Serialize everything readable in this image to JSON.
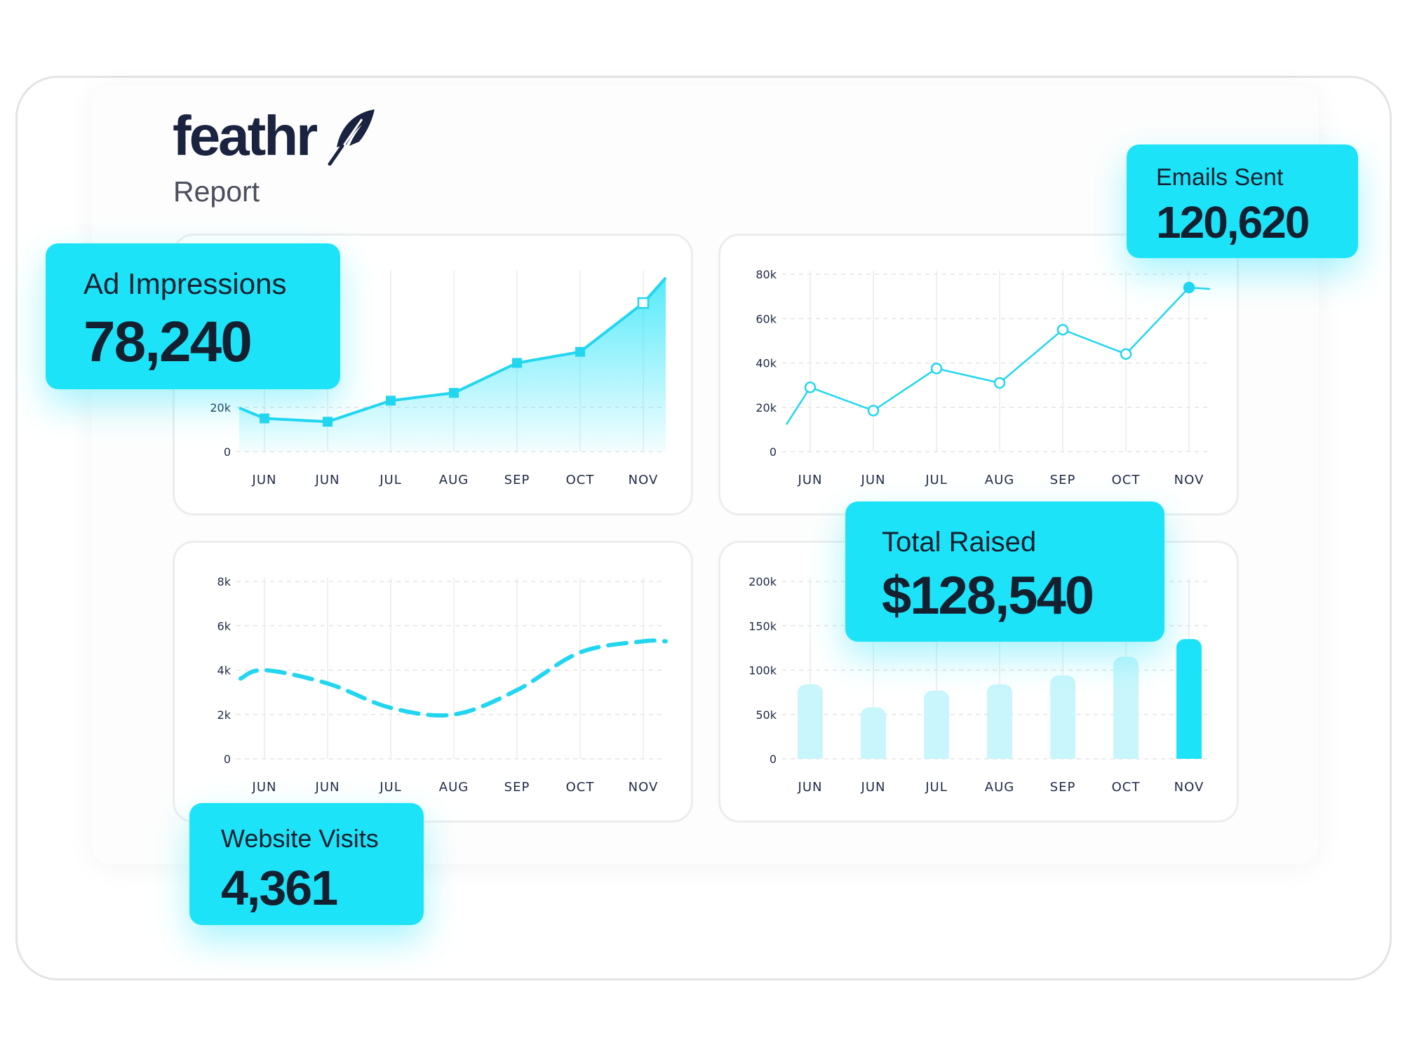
{
  "brand": {
    "name": "feathr",
    "subtitle": "Report",
    "icon": "feather-icon"
  },
  "colors": {
    "accent": "#1de3f9",
    "line": "#22d6ef",
    "text": "#1a2340"
  },
  "kpis": {
    "ad_impressions": {
      "label": "Ad Impressions",
      "value": "78,240"
    },
    "emails_sent": {
      "label": "Emails Sent",
      "value": "120,620"
    },
    "total_raised": {
      "label": "Total Raised",
      "value": "$128,540"
    },
    "website_visits": {
      "label": "Website Visits",
      "value": "4,361"
    }
  },
  "chart_data": [
    {
      "id": "ad-impressions-chart",
      "type": "area",
      "categories": [
        "JUN",
        "JUN",
        "JUL",
        "AUG",
        "SEP",
        "OCT",
        "NOV"
      ],
      "values": [
        15000,
        13500,
        23000,
        26500,
        40000,
        45000,
        67000
      ],
      "yticks": [
        "0",
        "20k"
      ],
      "ylim": [
        0,
        80000
      ],
      "grid": true
    },
    {
      "id": "emails-sent-chart",
      "type": "line",
      "categories": [
        "JUN",
        "JUN",
        "JUL",
        "AUG",
        "SEP",
        "OCT",
        "NOV"
      ],
      "values": [
        29000,
        18500,
        37500,
        31000,
        55000,
        44000,
        74000
      ],
      "yticks": [
        "0",
        "20k",
        "40k",
        "60k",
        "80k"
      ],
      "ylim": [
        0,
        80000
      ],
      "grid": true
    },
    {
      "id": "website-visits-chart",
      "type": "line",
      "style": "dashed-smooth",
      "categories": [
        "JUN",
        "JUN",
        "JUL",
        "AUG",
        "SEP",
        "OCT",
        "NOV"
      ],
      "values": [
        4000,
        3400,
        2300,
        2000,
        3100,
        4800,
        5300
      ],
      "yticks": [
        "0",
        "2k",
        "4k",
        "6k",
        "8k"
      ],
      "ylim": [
        0,
        8000
      ],
      "grid": true
    },
    {
      "id": "total-raised-chart",
      "type": "bar",
      "categories": [
        "JUN",
        "JUN",
        "JUL",
        "AUG",
        "SEP",
        "OCT",
        "NOV"
      ],
      "values": [
        84000,
        58000,
        77000,
        84000,
        94000,
        115000,
        135000
      ],
      "yticks": [
        "0",
        "50k",
        "100k",
        "150k",
        "200k"
      ],
      "ylim": [
        0,
        200000
      ],
      "highlight_last": true,
      "grid": true
    }
  ]
}
